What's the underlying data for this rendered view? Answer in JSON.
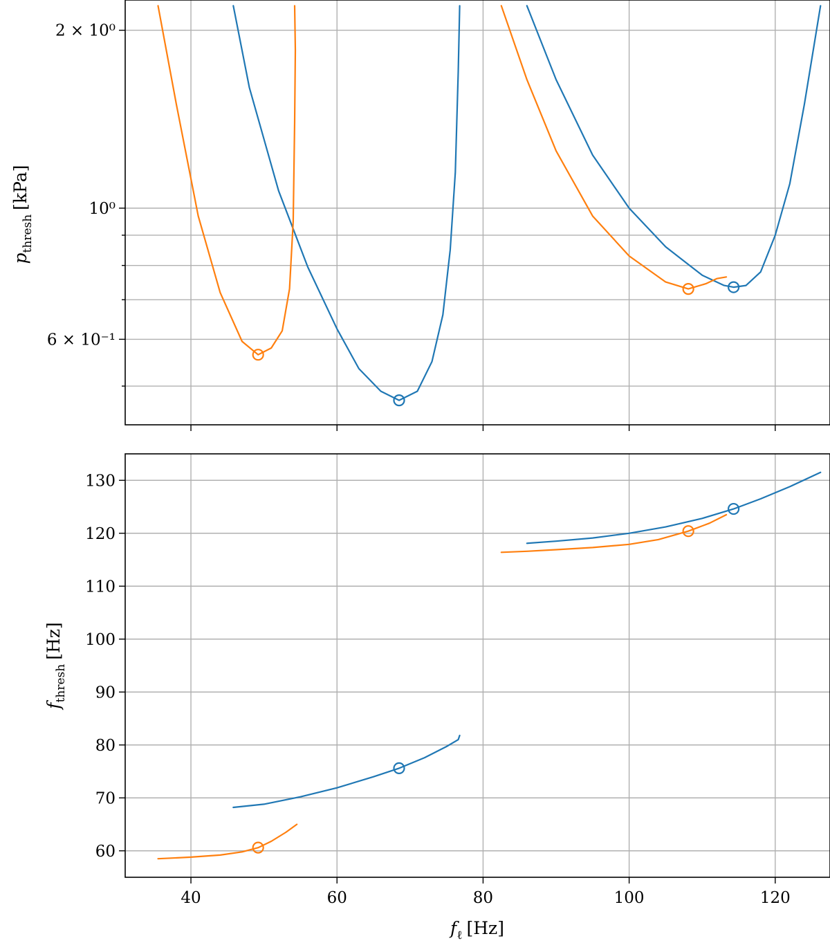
{
  "colors": {
    "blue": "#1f77b4",
    "orange": "#ff7f0e"
  },
  "chart_data": [
    {
      "type": "line",
      "title": "",
      "xlabel": "",
      "ylabel_var": "p",
      "ylabel_sub": "thresh",
      "ylabel_unit": "[kPa]",
      "yscale": "log",
      "xlim": [
        31,
        127.5
      ],
      "ylim": [
        0.43,
        2.25
      ],
      "grid": true,
      "y_major_ticks": [
        {
          "value": 0.6,
          "label": "6 × 10⁻¹"
        },
        {
          "value": 1.0,
          "label": "10⁰"
        },
        {
          "value": 2.0,
          "label": "2 × 10⁰"
        }
      ],
      "y_minor_ticks": [
        0.5,
        0.7,
        0.8,
        0.9
      ],
      "series": [
        {
          "color": "blue",
          "x": [
            45.8,
            48,
            52,
            56,
            60,
            63,
            66,
            68.5,
            71,
            73,
            74.5,
            75.5,
            76.2,
            76.6,
            76.8
          ],
          "y": [
            2.2,
            1.6,
            1.07,
            0.795,
            0.625,
            0.535,
            0.49,
            0.473,
            0.49,
            0.55,
            0.66,
            0.85,
            1.15,
            1.7,
            2.2
          ]
        },
        {
          "color": "orange",
          "x": [
            35.5,
            38,
            41,
            44,
            47,
            49.2,
            51,
            52.5,
            53.5,
            54.0,
            54.2,
            54.3,
            54.2
          ],
          "y": [
            2.2,
            1.5,
            0.97,
            0.72,
            0.595,
            0.565,
            0.58,
            0.62,
            0.73,
            0.95,
            1.4,
            1.85,
            2.2
          ]
        },
        {
          "color": "blue",
          "x": [
            86,
            90,
            95,
            100,
            105,
            110,
            113,
            114.3,
            116,
            118,
            120,
            122,
            124,
            126.2
          ],
          "y": [
            2.2,
            1.65,
            1.23,
            1.0,
            0.86,
            0.77,
            0.74,
            0.735,
            0.74,
            0.78,
            0.9,
            1.1,
            1.5,
            2.2
          ]
        },
        {
          "color": "orange",
          "x": [
            82.5,
            86,
            90,
            95,
            100,
            105,
            108.1,
            110.5,
            112,
            113.3
          ],
          "y": [
            2.2,
            1.65,
            1.25,
            0.97,
            0.83,
            0.75,
            0.73,
            0.745,
            0.76,
            0.765
          ]
        }
      ],
      "markers": [
        {
          "color": "blue",
          "x": 68.5,
          "y": 0.473
        },
        {
          "color": "orange",
          "x": 49.2,
          "y": 0.565
        },
        {
          "color": "blue",
          "x": 114.3,
          "y": 0.735
        },
        {
          "color": "orange",
          "x": 108.1,
          "y": 0.73
        }
      ]
    },
    {
      "type": "line",
      "title": "",
      "xlabel_var": "f",
      "xlabel_sub": "ℓ",
      "xlabel_unit": "[Hz]",
      "ylabel_var": "f",
      "ylabel_sub": "thresh",
      "ylabel_unit": "[Hz]",
      "xlim": [
        31,
        127.5
      ],
      "ylim": [
        55,
        135
      ],
      "grid": true,
      "x_ticks": [
        40,
        60,
        80,
        100,
        120
      ],
      "y_ticks": [
        60,
        70,
        80,
        90,
        100,
        110,
        120,
        130
      ],
      "series": [
        {
          "color": "blue",
          "x": [
            45.8,
            50,
            55,
            60,
            65,
            68.5,
            72,
            75,
            76.6,
            76.8
          ],
          "y": [
            68.2,
            68.8,
            70.2,
            71.9,
            74.0,
            75.6,
            77.6,
            79.7,
            81.0,
            81.8
          ]
        },
        {
          "color": "orange",
          "x": [
            35.5,
            40,
            44,
            47,
            49.2,
            51,
            53,
            54.5
          ],
          "y": [
            58.5,
            58.8,
            59.2,
            59.8,
            60.6,
            61.8,
            63.5,
            65.0
          ]
        },
        {
          "color": "blue",
          "x": [
            86,
            90,
            95,
            100,
            105,
            110,
            114.3,
            118,
            122,
            126.2
          ],
          "y": [
            118.1,
            118.5,
            119.1,
            120.0,
            121.2,
            122.8,
            124.6,
            126.5,
            128.8,
            131.5
          ]
        },
        {
          "color": "orange",
          "x": [
            82.5,
            86,
            90,
            95,
            100,
            104,
            108.1,
            111,
            113.3
          ],
          "y": [
            116.4,
            116.6,
            116.9,
            117.3,
            117.9,
            118.8,
            120.4,
            121.9,
            123.5
          ]
        }
      ],
      "markers": [
        {
          "color": "blue",
          "x": 68.5,
          "y": 75.6
        },
        {
          "color": "orange",
          "x": 49.2,
          "y": 60.6
        },
        {
          "color": "blue",
          "x": 114.3,
          "y": 124.6
        },
        {
          "color": "orange",
          "x": 108.1,
          "y": 120.4
        }
      ]
    }
  ]
}
